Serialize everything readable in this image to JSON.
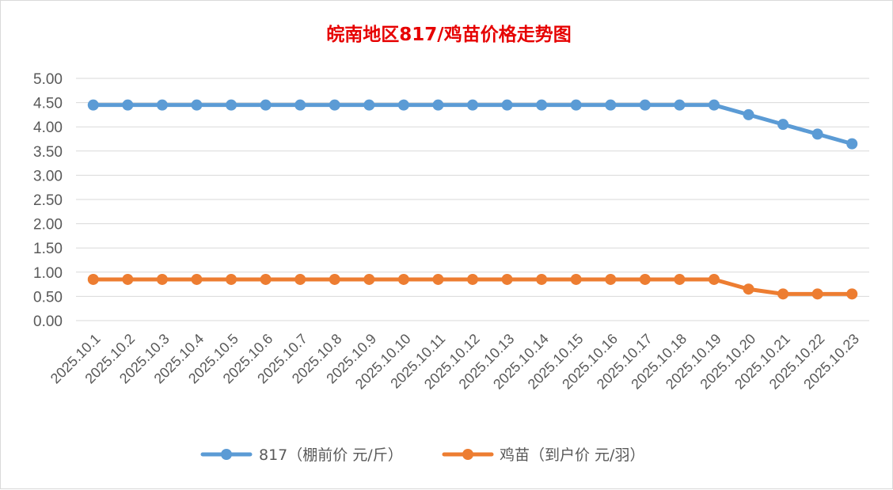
{
  "colors": {
    "title": "#e60000",
    "series_817": "#5b9bd5",
    "series_chick": "#ed7d31",
    "grid": "#d9d9d9",
    "text": "#595959"
  },
  "chart_data": {
    "type": "line",
    "title": "皖南地区817/鸡苗价格走势图",
    "xlabel": "",
    "ylabel": "",
    "ylim": [
      0,
      5
    ],
    "yticks": [
      "0.00",
      "0.50",
      "1.00",
      "1.50",
      "2.00",
      "2.50",
      "3.00",
      "3.50",
      "4.00",
      "4.50",
      "5.00"
    ],
    "grid": true,
    "legend_position": "bottom",
    "categories": [
      "2025.10.1",
      "2025.10.2",
      "2025.10.3",
      "2025.10.4",
      "2025.10.5",
      "2025.10.6",
      "2025.10.7",
      "2025.10.8",
      "2025.10.9",
      "2025.10.10",
      "2025.10.11",
      "2025.10.12",
      "2025.10.13",
      "2025.10.14",
      "2025.10.15",
      "2025.10.16",
      "2025.10.17",
      "2025.10.18",
      "2025.10.19",
      "2025.10.20",
      "2025.10.21",
      "2025.10.22",
      "2025.10.23"
    ],
    "series": [
      {
        "name": "817（棚前价 元/斤）",
        "color": "#5b9bd5",
        "values": [
          4.45,
          4.45,
          4.45,
          4.45,
          4.45,
          4.45,
          4.45,
          4.45,
          4.45,
          4.45,
          4.45,
          4.45,
          4.45,
          4.45,
          4.45,
          4.45,
          4.45,
          4.45,
          4.45,
          4.25,
          4.05,
          3.85,
          3.65
        ]
      },
      {
        "name": "鸡苗（到户价 元/羽）",
        "color": "#ed7d31",
        "values": [
          0.85,
          0.85,
          0.85,
          0.85,
          0.85,
          0.85,
          0.85,
          0.85,
          0.85,
          0.85,
          0.85,
          0.85,
          0.85,
          0.85,
          0.85,
          0.85,
          0.85,
          0.85,
          0.85,
          0.65,
          0.55,
          0.55,
          0.55
        ]
      }
    ]
  }
}
